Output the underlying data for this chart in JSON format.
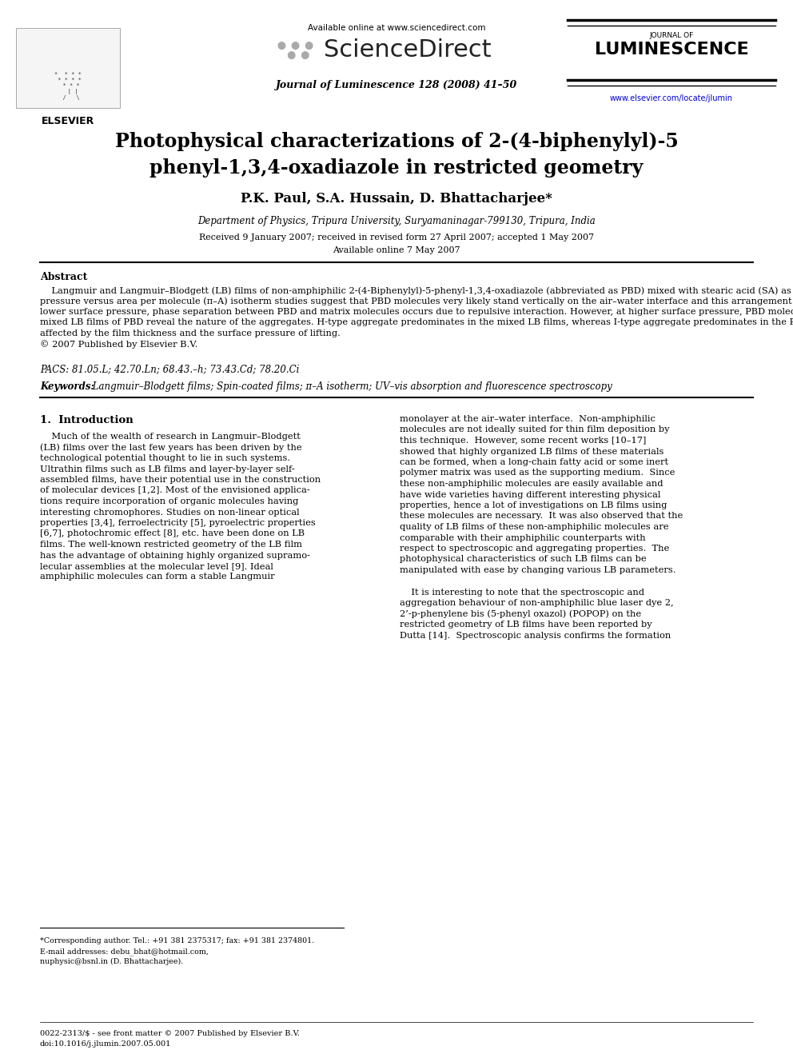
{
  "bg_color": "#ffffff",
  "page_width": 9.92,
  "page_height": 13.23,
  "header": {
    "available_online": "Available online at www.sciencedirect.com",
    "sciencedirect": "ScienceDirect",
    "journal_name": "Journal of Luminescence 128 (2008) 41–50",
    "elsevier": "ELSEVIER",
    "journal_of": "JOURNAL OF",
    "luminescence": "LUMINESCENCE",
    "url": "www.elsevier.com/locate/jlumin"
  },
  "title_line1": "Photophysical characterizations of 2-(4-biphenylyl)-5",
  "title_line2": "phenyl-1,3,4-oxadiazole in restricted geometry",
  "authors": "P.K. Paul, S.A. Hussain, D. Bhattacharjee*",
  "affiliation": "Department of Physics, Tripura University, Suryamaninagar-799130, Tripura, India",
  "received": "Received 9 January 2007; received in revised form 27 April 2007; accepted 1 May 2007",
  "available": "Available online 7 May 2007",
  "abstract_label": "Abstract",
  "pacs": "PACS: 81.05.L; 42.70.Ln; 68.43.–h; 73.43.Cd; 78.20.Ci",
  "keywords_label": "Keywords:",
  "keywords_text": " Langmuir–Blodgett films; Spin-coated films; π–A isotherm; UV–vis absorption and fluorescence spectroscopy",
  "section1_label": "1.  Introduction",
  "footnote_star": "*Corresponding author. Tel.: +91 381 2375317; fax: +91 381 2374801.",
  "footnote_email1": "E-mail addresses: debu_bhat@hotmail.com,",
  "footnote_email2": "nuphysic@bsnl.in (D. Bhattacharjee).",
  "footer_issn": "0022-2313/$ - see front matter © 2007 Published by Elsevier B.V.",
  "footer_doi": "doi:10.1016/j.jlumin.2007.05.001",
  "abstract_lines": [
    "    Langmuir and Langmuir–Blodgett (LB) films of non-amphiphilic 2-(4-Biphenylyl)-5-phenyl-1,3,4-oxadiazole (abbreviated as PBD) mixed with stearic acid (SA) as well as with the inert polymer matrix poly(methyl methacrylate) (PMMA) have been studied. Surface",
    "pressure versus area per molecule (π–A) isotherm studies suggest that PBD molecules very likely stand vertically on the air–water interface and this arrangement allows the PBD molecules to form stacks and remain sandwiched between SA/PMMA molecules. At",
    "lower surface pressure, phase separation between PBD and matrix molecules occurs due to repulsive interaction. However, at higher surface pressure, PBD molecules form aggregates. The UV–vis absorption and steady-state fluorescence spectroscopic studies of the",
    "mixed LB films of PBD reveal the nature of the aggregates. H-type aggregate predominates in the mixed LB films, whereas I-type aggregate predominates in the PBD-PMMA spin-coated films. The degree of deformation produced in the electronic levels are largely",
    "affected by the film thickness and the surface pressure of lifting.",
    "© 2007 Published by Elsevier B.V."
  ],
  "col1_lines": [
    "    Much of the wealth of research in Langmuir–Blodgett",
    "(LB) films over the last few years has been driven by the",
    "technological potential thought to lie in such systems.",
    "Ultrathin films such as LB films and layer-by-layer self-",
    "assembled films, have their potential use in the construction",
    "of molecular devices [1,2]. Most of the envisioned applica-",
    "tions require incorporation of organic molecules having",
    "interesting chromophores. Studies on non-linear optical",
    "properties [3,4], ferroelectricity [5], pyroelectric properties",
    "[6,7], photochromic effect [8], etc. have been done on LB",
    "films. The well-known restricted geometry of the LB film",
    "has the advantage of obtaining highly organized supramo-",
    "lecular assemblies at the molecular level [9]. Ideal",
    "amphiphilic molecules can form a stable Langmuir"
  ],
  "col2_lines1": [
    "monolayer at the air–water interface.  Non-amphiphilic",
    "molecules are not ideally suited for thin film deposition by",
    "this technique.  However, some recent works [10–17]",
    "showed that highly organized LB films of these materials",
    "can be formed, when a long-chain fatty acid or some inert",
    "polymer matrix was used as the supporting medium.  Since",
    "these non-amphiphilic molecules are easily available and",
    "have wide varieties having different interesting physical",
    "properties, hence a lot of investigations on LB films using",
    "these molecules are necessary.  It was also observed that the",
    "quality of LB films of these non-amphiphilic molecules are",
    "comparable with their amphiphilic counterparts with",
    "respect to spectroscopic and aggregating properties.  The",
    "photophysical characteristics of such LB films can be",
    "manipulated with ease by changing various LB parameters."
  ],
  "col2_lines2": [
    "    It is interesting to note that the spectroscopic and",
    "aggregation behaviour of non-amphiphilic blue laser dye 2,",
    "2’-p-phenylene bis (5-phenyl oxazol) (POPOP) on the",
    "restricted geometry of LB films have been reported by",
    "Dutta [14].  Spectroscopic analysis confirms the formation"
  ]
}
